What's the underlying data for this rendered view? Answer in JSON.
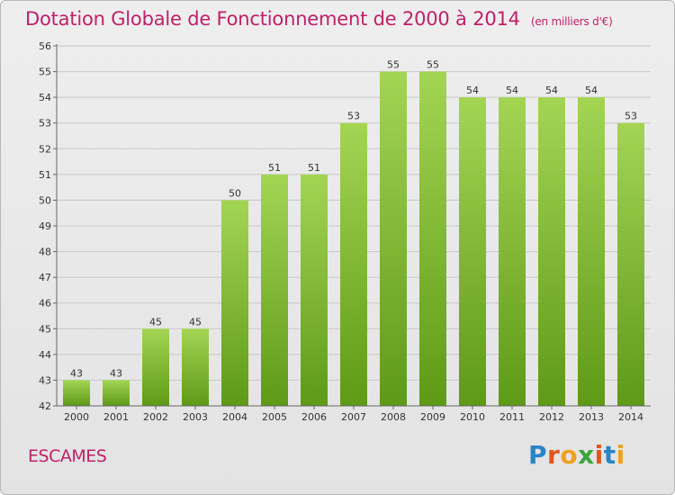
{
  "header": {
    "title": "Dotation Globale de Fonctionnement de 2000 à 2014",
    "unit": "(en milliers d'€)"
  },
  "footer": {
    "commune": "ESCAMES",
    "brand": "Proxiti"
  },
  "colors": {
    "title": "#c0206a",
    "bar_top": "#a3d553",
    "bar_bottom": "#5e9a16",
    "grid": "#c8c8c8"
  },
  "chart_data": {
    "type": "bar",
    "title": "Dotation Globale de Fonctionnement de 2000 à 2014",
    "xlabel": "",
    "ylabel": "",
    "categories": [
      "2000",
      "2001",
      "2002",
      "2003",
      "2004",
      "2005",
      "2006",
      "2007",
      "2008",
      "2009",
      "2010",
      "2011",
      "2012",
      "2013",
      "2014"
    ],
    "values": [
      43,
      43,
      45,
      45,
      50,
      51,
      51,
      53,
      55,
      55,
      54,
      54,
      54,
      54,
      53
    ],
    "ylim": [
      42,
      56
    ],
    "yticks": [
      42,
      43,
      44,
      45,
      46,
      47,
      48,
      49,
      50,
      51,
      52,
      53,
      54,
      55,
      56
    ],
    "grid": true,
    "data_labels": true
  }
}
